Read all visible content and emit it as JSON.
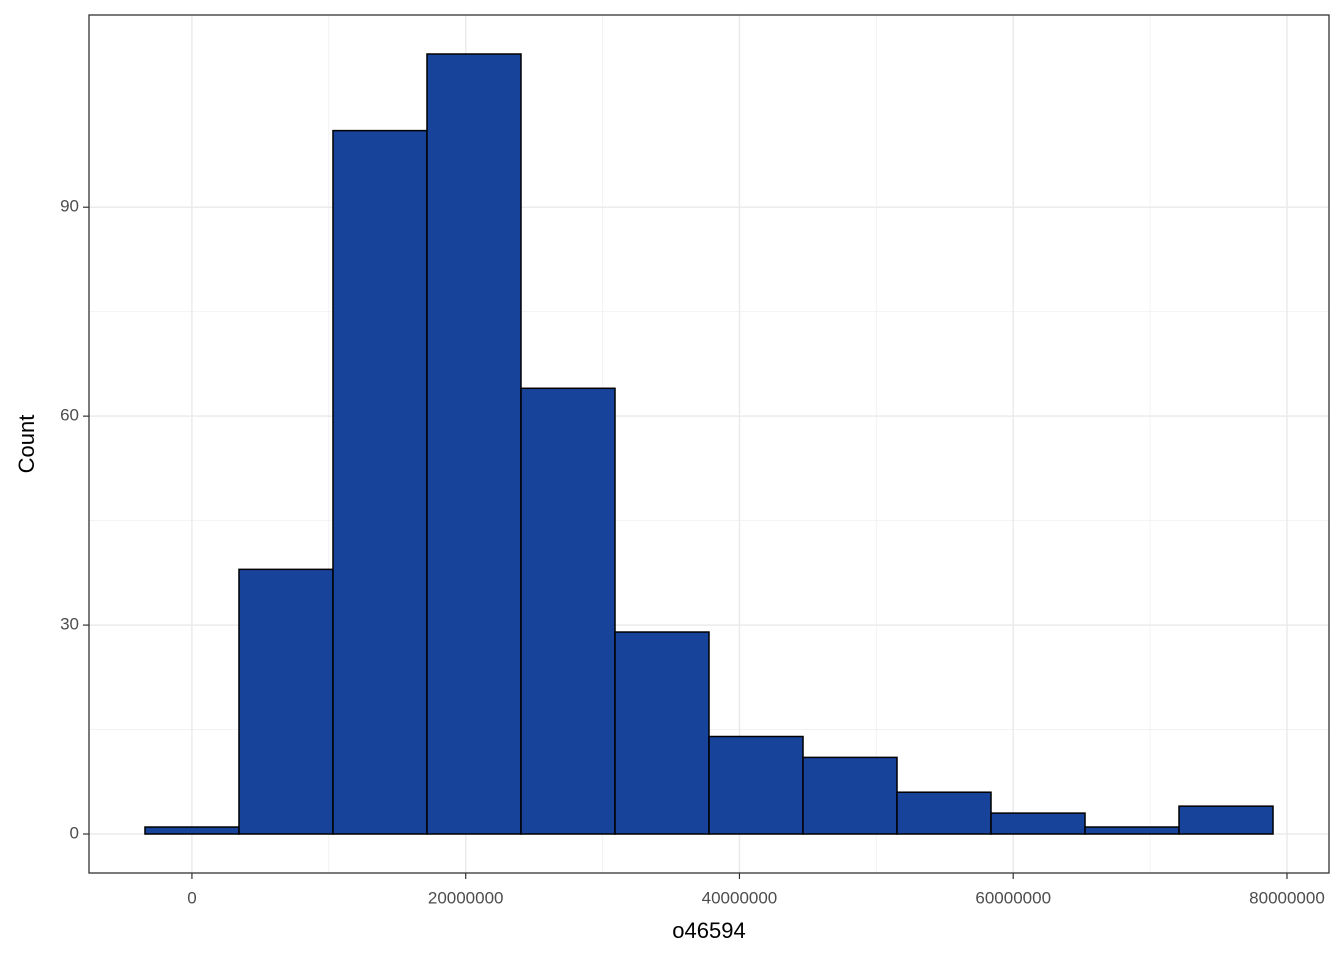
{
  "chart_data": {
    "type": "histogram",
    "x_label": "o46594",
    "y_label": "Count",
    "bins": [
      -3430000,
      3437500,
      10305000,
      17172500,
      24040000,
      30907500,
      37775000,
      44642500,
      51510000,
      58377500,
      65245000,
      72112500,
      78980000
    ],
    "values": [
      1,
      38,
      101,
      112,
      64,
      29,
      14,
      11,
      6,
      3,
      1,
      4
    ],
    "color": "#17439a",
    "edge_color": "#000000",
    "xlim": [
      -7520000,
      83070000
    ],
    "ylim": [
      -5.6,
      117.6
    ],
    "xticks": [
      0,
      20000000,
      40000000,
      60000000,
      80000000
    ],
    "yticks": [
      0,
      30,
      60,
      90
    ],
    "grid": true
  }
}
